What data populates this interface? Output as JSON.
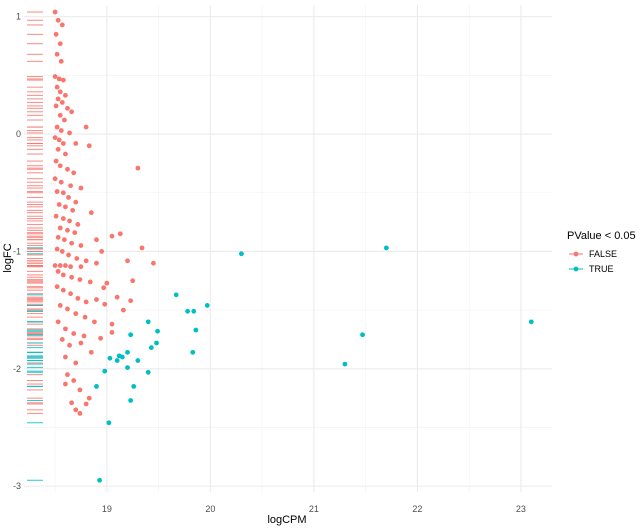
{
  "chart_data": {
    "type": "scatter",
    "xlabel": "logCPM",
    "ylabel": "logFC",
    "xlim": [
      18.2,
      23.3
    ],
    "ylim": [
      -3.05,
      1.1
    ],
    "x_ticks": [
      19,
      20,
      21,
      22,
      23
    ],
    "y_ticks": [
      1,
      0,
      -1,
      -2,
      -3
    ],
    "grid": true,
    "legend": {
      "title": "PValue < 0.05",
      "position": "right",
      "entries": [
        {
          "label": "FALSE",
          "color": "#F8766D"
        },
        {
          "label": "TRUE",
          "color": "#00BFC4"
        }
      ]
    },
    "rug": "left",
    "series": [
      {
        "name": "FALSE",
        "color": "#F8766D",
        "points": [
          [
            18.5,
            1.04
          ],
          [
            18.53,
            0.97
          ],
          [
            18.57,
            0.93
          ],
          [
            18.51,
            0.85
          ],
          [
            18.55,
            0.77
          ],
          [
            18.52,
            0.68
          ],
          [
            18.56,
            0.62
          ],
          [
            18.5,
            0.49
          ],
          [
            18.54,
            0.47
          ],
          [
            18.58,
            0.46
          ],
          [
            18.52,
            0.4
          ],
          [
            18.55,
            0.36
          ],
          [
            18.6,
            0.33
          ],
          [
            18.53,
            0.3
          ],
          [
            18.57,
            0.27
          ],
          [
            18.51,
            0.24
          ],
          [
            18.62,
            0.22
          ],
          [
            18.66,
            0.19
          ],
          [
            18.55,
            0.16
          ],
          [
            18.59,
            0.12
          ],
          [
            18.52,
            0.06
          ],
          [
            18.56,
            0.03
          ],
          [
            18.64,
            0.01
          ],
          [
            18.8,
            0.06
          ],
          [
            18.5,
            -0.03
          ],
          [
            18.54,
            -0.05
          ],
          [
            18.58,
            -0.08
          ],
          [
            18.7,
            -0.08
          ],
          [
            18.83,
            -0.1
          ],
          [
            18.53,
            -0.13
          ],
          [
            18.6,
            -0.17
          ],
          [
            18.51,
            -0.23
          ],
          [
            18.55,
            -0.27
          ],
          [
            18.62,
            -0.3
          ],
          [
            18.68,
            -0.33
          ],
          [
            19.3,
            -0.29
          ],
          [
            18.5,
            -0.38
          ],
          [
            18.56,
            -0.41
          ],
          [
            18.65,
            -0.44
          ],
          [
            18.75,
            -0.46
          ],
          [
            18.52,
            -0.49
          ],
          [
            18.58,
            -0.5
          ],
          [
            18.63,
            -0.54
          ],
          [
            18.7,
            -0.58
          ],
          [
            18.54,
            -0.6
          ],
          [
            18.6,
            -0.62
          ],
          [
            18.67,
            -0.65
          ],
          [
            18.85,
            -0.67
          ],
          [
            18.51,
            -0.7
          ],
          [
            18.58,
            -0.72
          ],
          [
            18.64,
            -0.74
          ],
          [
            18.72,
            -0.77
          ],
          [
            18.55,
            -0.8
          ],
          [
            18.62,
            -0.82
          ],
          [
            18.69,
            -0.84
          ],
          [
            18.53,
            -0.88
          ],
          [
            18.59,
            -0.9
          ],
          [
            18.66,
            -0.93
          ],
          [
            18.75,
            -0.95
          ],
          [
            18.9,
            -0.9
          ],
          [
            19.05,
            -0.87
          ],
          [
            18.52,
            -0.98
          ],
          [
            18.57,
            -1.0
          ],
          [
            18.63,
            -1.03
          ],
          [
            18.71,
            -1.06
          ],
          [
            18.8,
            -1.08
          ],
          [
            18.95,
            -1.0
          ],
          [
            19.13,
            -0.85
          ],
          [
            19.34,
            -0.97
          ],
          [
            18.5,
            -1.12
          ],
          [
            18.55,
            -1.12
          ],
          [
            18.6,
            -1.12
          ],
          [
            18.65,
            -1.13
          ],
          [
            18.75,
            -1.13
          ],
          [
            18.9,
            -1.1
          ],
          [
            19.2,
            -1.08
          ],
          [
            19.45,
            -1.1
          ],
          [
            18.53,
            -1.17
          ],
          [
            18.58,
            -1.2
          ],
          [
            18.66,
            -1.22
          ],
          [
            18.74,
            -1.24
          ],
          [
            18.84,
            -1.26
          ],
          [
            19.0,
            -1.27
          ],
          [
            19.25,
            -1.25
          ],
          [
            18.52,
            -1.3
          ],
          [
            18.58,
            -1.33
          ],
          [
            18.65,
            -1.36
          ],
          [
            18.72,
            -1.4
          ],
          [
            18.8,
            -1.43
          ],
          [
            18.9,
            -1.41
          ],
          [
            18.97,
            -1.31
          ],
          [
            19.1,
            -1.39
          ],
          [
            19.23,
            -1.42
          ],
          [
            18.55,
            -1.46
          ],
          [
            18.62,
            -1.49
          ],
          [
            18.7,
            -1.53
          ],
          [
            18.79,
            -1.56
          ],
          [
            18.88,
            -1.6
          ],
          [
            18.98,
            -1.45
          ],
          [
            19.05,
            -1.62
          ],
          [
            19.16,
            -1.5
          ],
          [
            18.53,
            -1.6
          ],
          [
            18.6,
            -1.66
          ],
          [
            18.68,
            -1.7
          ],
          [
            18.78,
            -1.72
          ],
          [
            18.57,
            -1.75
          ],
          [
            18.64,
            -1.8
          ],
          [
            18.75,
            -1.78
          ],
          [
            18.85,
            -1.86
          ],
          [
            18.94,
            -1.74
          ],
          [
            19.05,
            -1.69
          ],
          [
            18.6,
            -1.9
          ],
          [
            18.7,
            -1.95
          ],
          [
            18.62,
            -2.05
          ],
          [
            18.68,
            -2.1
          ],
          [
            18.6,
            -2.13
          ],
          [
            18.74,
            -2.18
          ],
          [
            18.83,
            -2.25
          ],
          [
            18.66,
            -2.29
          ],
          [
            18.7,
            -2.35
          ],
          [
            18.74,
            -2.38
          ],
          [
            18.8,
            -2.3
          ]
        ]
      },
      {
        "name": "TRUE",
        "color": "#00BFC4",
        "points": [
          [
            20.3,
            -1.02
          ],
          [
            21.7,
            -0.97
          ],
          [
            19.67,
            -1.37
          ],
          [
            19.78,
            -1.51
          ],
          [
            19.84,
            -1.51
          ],
          [
            19.97,
            -1.46
          ],
          [
            23.1,
            -1.6
          ],
          [
            19.4,
            -1.6
          ],
          [
            19.49,
            -1.68
          ],
          [
            19.86,
            -1.67
          ],
          [
            19.23,
            -1.71
          ],
          [
            21.47,
            -1.71
          ],
          [
            19.48,
            -1.78
          ],
          [
            19.43,
            -1.82
          ],
          [
            19.83,
            -1.86
          ],
          [
            19.2,
            -1.86
          ],
          [
            19.12,
            -1.89
          ],
          [
            19.15,
            -1.9
          ],
          [
            19.03,
            -1.91
          ],
          [
            19.1,
            -1.93
          ],
          [
            19.3,
            -1.93
          ],
          [
            21.3,
            -1.96
          ],
          [
            19.2,
            -1.99
          ],
          [
            18.98,
            -2.02
          ],
          [
            19.4,
            -2.03
          ],
          [
            19.26,
            -2.15
          ],
          [
            18.9,
            -2.15
          ],
          [
            19.23,
            -2.27
          ],
          [
            19.02,
            -2.46
          ],
          [
            18.93,
            -2.95
          ]
        ]
      }
    ]
  }
}
